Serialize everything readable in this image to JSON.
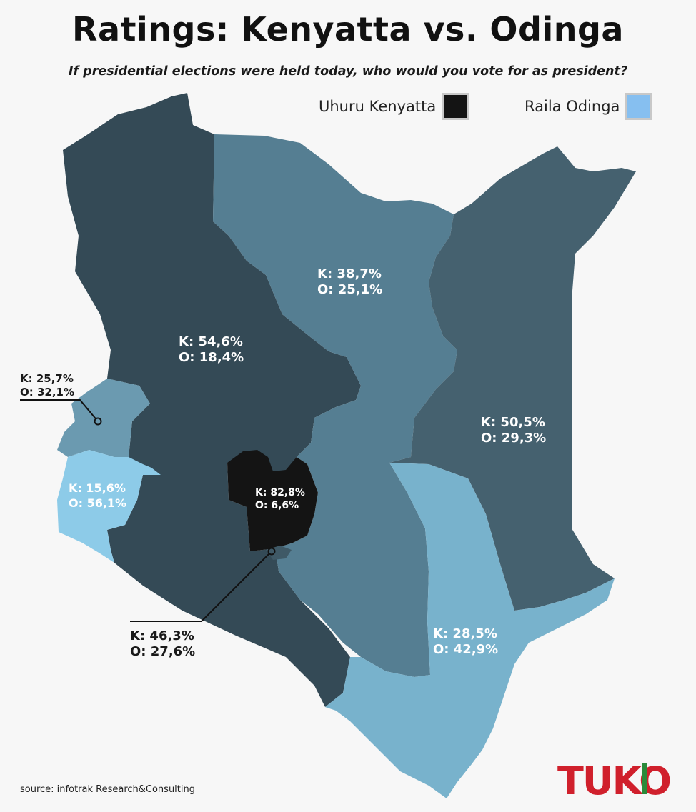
{
  "title": "Ratings: Kenyatta vs. Odinga",
  "subtitle": "If presidential elections were held today, who would you vote for as president?",
  "legend": [
    {
      "label": "Uhuru Kenyatta",
      "color": "#141414"
    },
    {
      "label": "Raila Odinga",
      "color": "#86bff0"
    }
  ],
  "regions": [
    {
      "name": "rift-valley",
      "k": "K: 54,6%",
      "o": "O: 18,4%",
      "color": "#344a56"
    },
    {
      "name": "eastern",
      "k": "K: 38,7%",
      "o": "O: 25,1%",
      "color": "#557e92"
    },
    {
      "name": "north-eastern",
      "k": "K: 50,5%",
      "o": "O: 29,3%",
      "color": "#45616f"
    },
    {
      "name": "western",
      "k": "K: 25,7%",
      "o": "O: 32,1%",
      "color": "#6b9ab0"
    },
    {
      "name": "nyanza",
      "k": "K: 15,6%",
      "o": "O: 56,1%",
      "color": "#8dcbe8"
    },
    {
      "name": "central",
      "k": "K: 82,8%",
      "o": "O: 6,6%",
      "color": "#141414"
    },
    {
      "name": "nairobi",
      "k": "K: 46,3%",
      "o": "O: 27,6%",
      "color": "#3f5966"
    },
    {
      "name": "coast",
      "k": "K: 28,5%",
      "o": "O: 42,9%",
      "color": "#78b2cc"
    }
  ],
  "source": "source: infotrak Research&Consulting",
  "logo": "TUKO"
}
